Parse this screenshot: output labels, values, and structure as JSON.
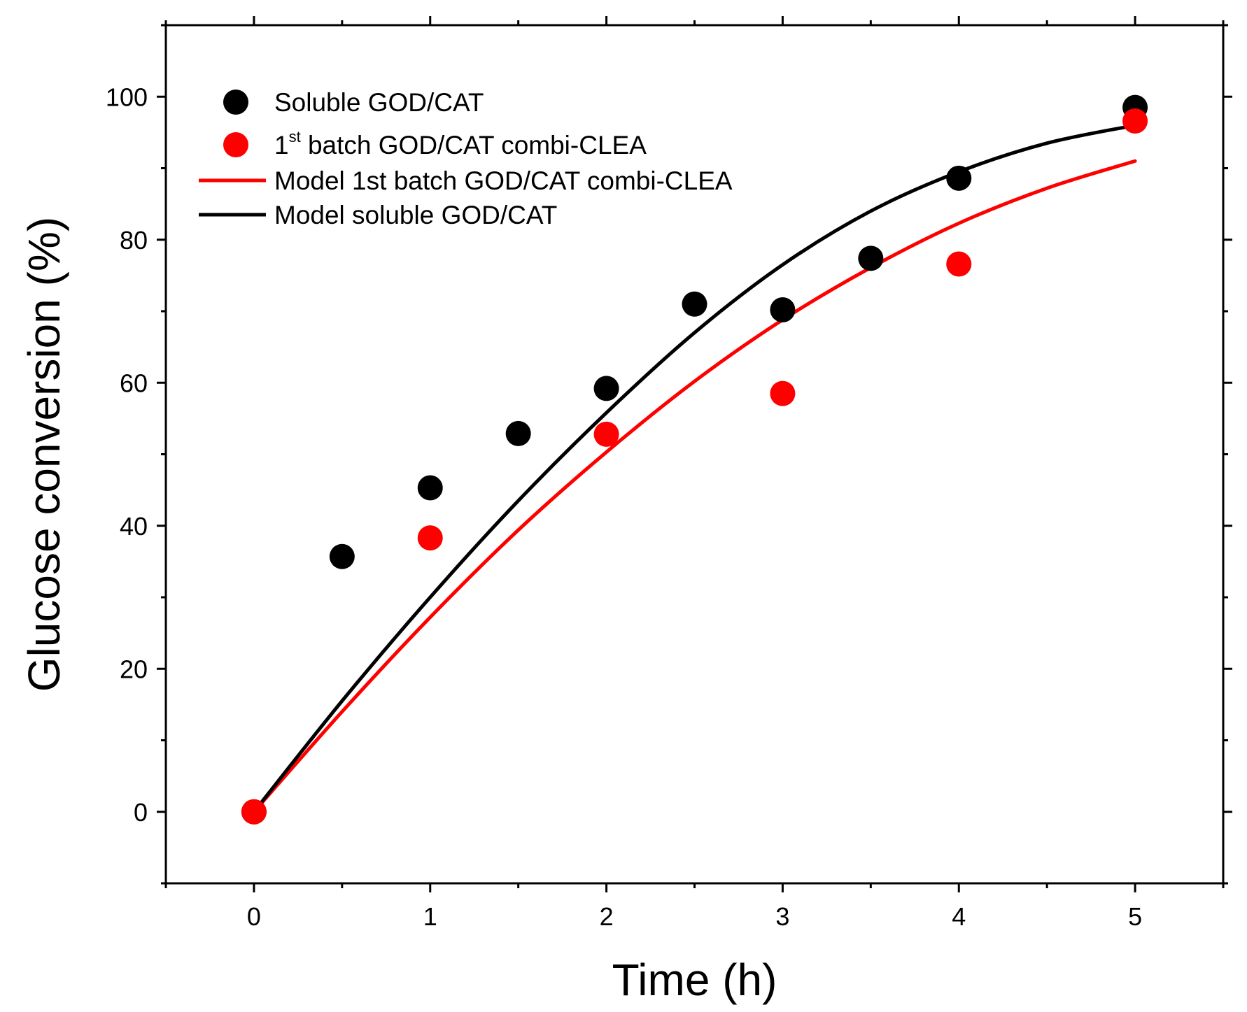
{
  "chart_data": {
    "type": "scatter",
    "title": "",
    "xlabel": "Time (h)",
    "ylabel": "Glucose conversion (%)",
    "xlim": [
      -0.5,
      5.5
    ],
    "ylim": [
      -10,
      110
    ],
    "grid": false,
    "legend_position": "top-left",
    "x_ticks": [
      0,
      1,
      2,
      3,
      4,
      5
    ],
    "x_tick_labels": [
      "0",
      "1",
      "2",
      "3",
      "4",
      "5"
    ],
    "x_minor_ticks": [
      -0.5,
      0.5,
      1.5,
      2.5,
      3.5,
      4.5,
      5.5
    ],
    "y_ticks": [
      0,
      20,
      40,
      60,
      80,
      100
    ],
    "y_tick_labels": [
      "0",
      "20",
      "40",
      "60",
      "80",
      "100"
    ],
    "y_minor_ticks": [
      -10,
      10,
      30,
      50,
      70,
      90,
      110
    ],
    "series": [
      {
        "name": "Soluble GOD/CAT",
        "kind": "scatter",
        "color": "#000000",
        "x": [
          0,
          0.5,
          1,
          1.5,
          2,
          2.5,
          3,
          3.5,
          4,
          5
        ],
        "y": [
          0,
          35.7,
          45.3,
          52.9,
          59.2,
          71.0,
          70.2,
          77.4,
          88.6,
          98.5
        ]
      },
      {
        "name": "batch GOD/CAT combi-CLEA",
        "name_prefix": "1",
        "name_superscript": "st",
        "kind": "scatter",
        "color": "#ff0000",
        "x": [
          0,
          1,
          2,
          3,
          4,
          5
        ],
        "y": [
          0,
          38.3,
          52.8,
          58.5,
          76.6,
          96.6
        ]
      },
      {
        "name": "Model 1st batch GOD/CAT combi-CLEA",
        "kind": "line",
        "color": "#ff0000",
        "x": [
          0,
          0.5,
          1,
          1.5,
          2,
          2.5,
          3,
          3.5,
          4,
          4.5,
          5
        ],
        "y": [
          0,
          14.0,
          27.2,
          39.4,
          50.3,
          60.2,
          68.8,
          76.1,
          82.3,
          87.2,
          91.0
        ]
      },
      {
        "name": "Model soluble GOD/CAT",
        "kind": "line",
        "color": "#000000",
        "x": [
          0,
          0.5,
          1,
          1.5,
          2,
          2.5,
          3,
          3.5,
          4,
          4.5,
          5
        ],
        "y": [
          0,
          15.5,
          30.0,
          43.5,
          55.8,
          67.0,
          76.5,
          84.0,
          89.5,
          93.5,
          96.0
        ]
      }
    ]
  }
}
